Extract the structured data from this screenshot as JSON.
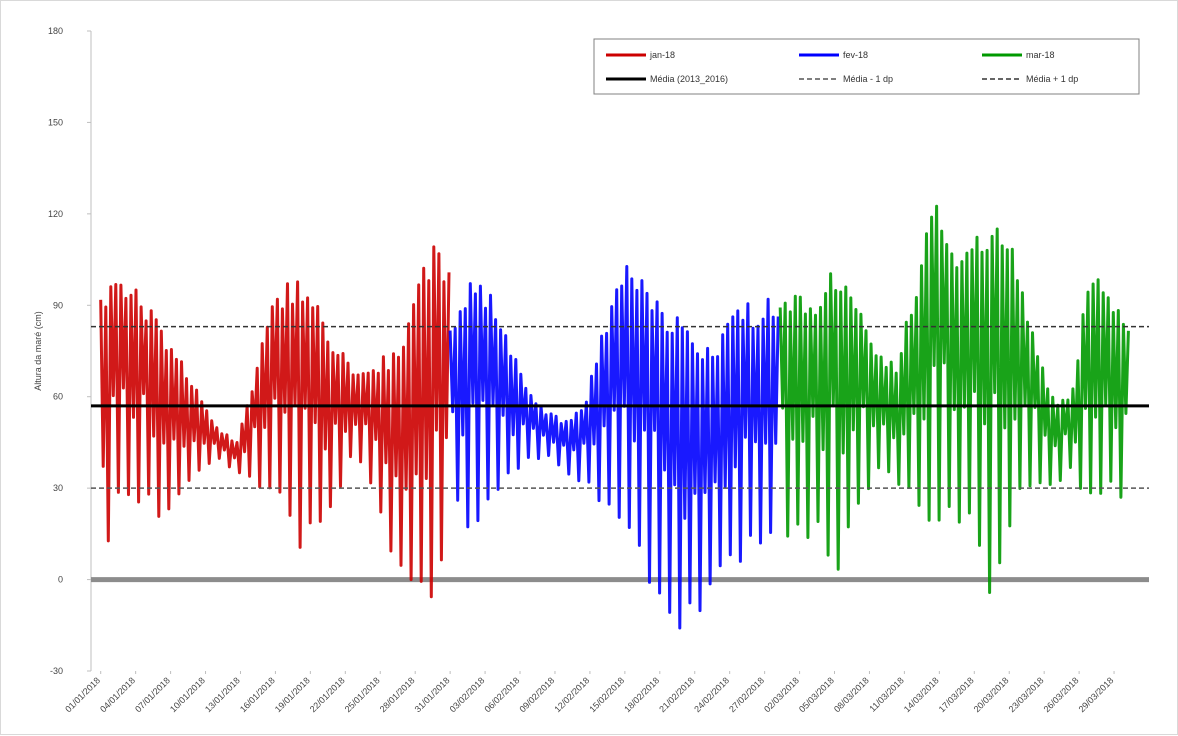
{
  "chart_data": {
    "type": "line",
    "ylabel": "Altura da maré (cm)",
    "ylim": [
      -30,
      180
    ],
    "yticks": [
      -30,
      0,
      30,
      60,
      90,
      120,
      150,
      180
    ],
    "grid": false,
    "legend_position": "top-right",
    "x_tick_labels": [
      "01/01/2018",
      "04/01/2018",
      "07/01/2018",
      "10/01/2018",
      "13/01/2018",
      "16/01/2018",
      "19/01/2018",
      "22/01/2018",
      "25/01/2018",
      "28/01/2018",
      "31/01/2018",
      "03/02/2018",
      "06/02/2018",
      "09/02/2018",
      "12/02/2018",
      "15/02/2018",
      "18/02/2018",
      "21/02/2018",
      "24/02/2018",
      "27/02/2018",
      "02/03/2018",
      "05/03/2018",
      "08/03/2018",
      "11/03/2018",
      "14/03/2018",
      "17/03/2018",
      "20/03/2018",
      "23/03/2018",
      "26/03/2018",
      "29/03/2018"
    ],
    "series": [
      {
        "name": "jan-18",
        "color": "#cc0000",
        "kind": "tide",
        "x_range": [
          1,
          31
        ],
        "envelope": [
          [
            1,
            92,
            0
          ],
          [
            3,
            100,
            30
          ],
          [
            5,
            95,
            25
          ],
          [
            7,
            85,
            20
          ],
          [
            9,
            75,
            25
          ],
          [
            11,
            62,
            35
          ],
          [
            13,
            50,
            40
          ],
          [
            15,
            45,
            35
          ],
          [
            17,
            70,
            30
          ],
          [
            19,
            95,
            25
          ],
          [
            21,
            100,
            10
          ],
          [
            23,
            95,
            10
          ],
          [
            25,
            80,
            20
          ],
          [
            27,
            68,
            40
          ],
          [
            29,
            72,
            30
          ],
          [
            31,
            75,
            5
          ],
          [
            33,
            90,
            -10
          ],
          [
            35,
            110,
            -10
          ],
          [
            37,
            105,
            0
          ]
        ]
      },
      {
        "name": "fev-18",
        "color": "#0000ff",
        "kind": "tide",
        "x_range": [
          37,
          64
        ],
        "envelope": [
          [
            37,
            85,
            30
          ],
          [
            39,
            100,
            15
          ],
          [
            41,
            95,
            25
          ],
          [
            43,
            80,
            30
          ],
          [
            45,
            62,
            38
          ],
          [
            47,
            55,
            40
          ],
          [
            49,
            52,
            35
          ],
          [
            51,
            60,
            30
          ],
          [
            53,
            85,
            20
          ],
          [
            55,
            105,
            10
          ],
          [
            57,
            100,
            0
          ],
          [
            59,
            90,
            -10
          ],
          [
            61,
            85,
            -20
          ],
          [
            63,
            80,
            -10
          ],
          [
            65,
            82,
            0
          ],
          [
            67,
            90,
            5
          ],
          [
            69,
            92,
            10
          ],
          [
            71,
            95,
            15
          ]
        ]
      },
      {
        "name": "mar-18",
        "color": "#009900",
        "kind": "tide",
        "x_range": [
          64,
          95
        ],
        "envelope": [
          [
            71,
            95,
            15
          ],
          [
            73,
            95,
            10
          ],
          [
            75,
            95,
            15
          ],
          [
            77,
            105,
            0
          ],
          [
            79,
            90,
            20
          ],
          [
            81,
            75,
            35
          ],
          [
            83,
            70,
            30
          ],
          [
            85,
            100,
            25
          ],
          [
            87,
            125,
            15
          ],
          [
            89,
            110,
            15
          ],
          [
            91,
            115,
            15
          ],
          [
            93,
            120,
            -10
          ],
          [
            95,
            110,
            20
          ],
          [
            97,
            85,
            25
          ],
          [
            99,
            60,
            30
          ],
          [
            101,
            60,
            35
          ],
          [
            103,
            105,
            20
          ],
          [
            105,
            95,
            30
          ],
          [
            107,
            85,
            20
          ]
        ]
      },
      {
        "name": "Média (2013_2016)",
        "color": "#000000",
        "kind": "hline",
        "value": 57
      },
      {
        "name": "Média - 1 dp",
        "color": "#555555",
        "kind": "hline-dash",
        "value": 30
      },
      {
        "name": "Média + 1 dp",
        "color": "#333333",
        "kind": "hline-dash",
        "value": 83
      }
    ],
    "zero_line": 0
  }
}
